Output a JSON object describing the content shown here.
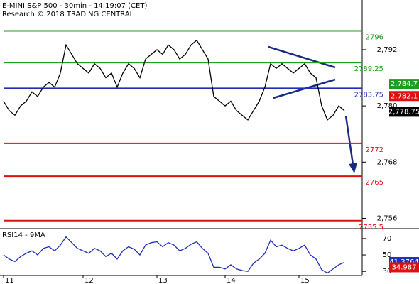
{
  "chart_data": [
    {
      "type": "line",
      "title": "E-MINI S&P 500 - 30min - 14:19:07 (CET)",
      "subtitle": "Research © 2018 TRADING CENTRAL",
      "categories": [
        "11",
        null,
        null,
        null,
        null,
        null,
        null,
        null,
        null,
        null,
        null,
        null,
        null,
        null,
        "12",
        null,
        null,
        null,
        null,
        null,
        null,
        null,
        null,
        null,
        null,
        null,
        null,
        "13",
        null,
        null,
        null,
        null,
        null,
        null,
        null,
        null,
        null,
        null,
        null,
        "14",
        null,
        null,
        null,
        null,
        null,
        null,
        null,
        null,
        null,
        null,
        null,
        null,
        "15",
        null,
        null,
        null,
        null,
        null,
        null,
        null,
        null
      ],
      "series": [
        {
          "color": "#000000",
          "values": [
            2781,
            2779,
            2778,
            2780,
            2781,
            2783,
            2782,
            2784,
            2785,
            2784,
            2787,
            2793,
            2791,
            2789,
            2788,
            2787,
            2789,
            2788,
            2786,
            2787,
            2784,
            2787,
            2789,
            2788,
            2786,
            2790,
            2791,
            2792,
            2791,
            2793,
            2792,
            2790,
            2791,
            2793,
            2794,
            2792,
            2790,
            2782,
            2781,
            2780,
            2781,
            2779,
            2778,
            2777,
            2779,
            2781,
            2784,
            2789,
            2788,
            2789,
            2788,
            2787,
            2788,
            2789,
            2787,
            2786,
            2780,
            2777,
            2778,
            2780,
            2779
          ]
        }
      ],
      "ylim": [
        2753.8,
        2802.6
      ],
      "yticks": [
        {
          "value": 2756,
          "label": "2,756"
        },
        {
          "value": 2768,
          "label": "2,768"
        },
        {
          "value": 2780,
          "label": "2,780"
        },
        {
          "value": 2792,
          "label": "2,792"
        }
      ],
      "levels": [
        {
          "value": 2796,
          "color": "#1e9e1e"
        },
        {
          "value": 2789.25,
          "color": "#1e9e1e"
        },
        {
          "value": 2783.75,
          "color": "#1f2fb8"
        },
        {
          "value": 2772,
          "color": "#e01010"
        },
        {
          "value": 2765,
          "color": "#e01010"
        },
        {
          "value": 2755.5,
          "color": "#e01010"
        }
      ],
      "tags": [
        {
          "value": 2784.7,
          "label": "2,784.7",
          "color": "#1e9e1e"
        },
        {
          "value": 2782.1,
          "label": "2,782.1",
          "color": "#e01010"
        },
        {
          "value": 2778.75,
          "label": "2,778.75",
          "color": "#000000"
        }
      ]
    },
    {
      "type": "line",
      "title": "RSI14 - 9MA",
      "series": [
        {
          "color": "#1f2fb8",
          "values": [
            50,
            45,
            42,
            48,
            52,
            55,
            50,
            58,
            60,
            55,
            62,
            72,
            65,
            58,
            55,
            52,
            58,
            55,
            48,
            52,
            45,
            55,
            60,
            57,
            50,
            62,
            65,
            66,
            60,
            65,
            62,
            55,
            58,
            63,
            66,
            58,
            52,
            35,
            35,
            33,
            38,
            33,
            31,
            30,
            40,
            45,
            52,
            68,
            60,
            62,
            58,
            55,
            58,
            62,
            50,
            45,
            32,
            28,
            33,
            38,
            41
          ]
        }
      ],
      "ylim": [
        25,
        82
      ],
      "yticks": [
        30,
        50,
        70
      ],
      "tags": [
        {
          "value": 41.3764,
          "color": "#1f2fb8"
        },
        {
          "value": 34.987,
          "color": "#e01010"
        }
      ]
    }
  ]
}
